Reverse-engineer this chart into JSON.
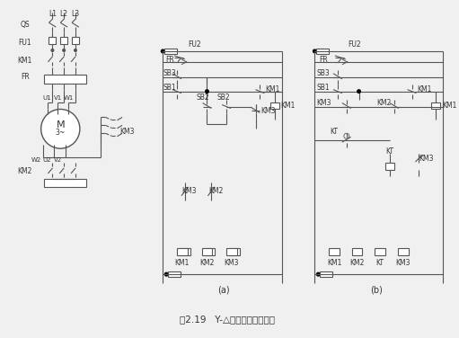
{
  "title": "图2.19   Y-△降压起动控制线路",
  "fig_width": 5.11,
  "fig_height": 3.76,
  "dpi": 100,
  "lc": "#555555",
  "tc": "#333333",
  "bg": "#f0f0f0",
  "label_a": "(a)",
  "label_b": "(b)"
}
